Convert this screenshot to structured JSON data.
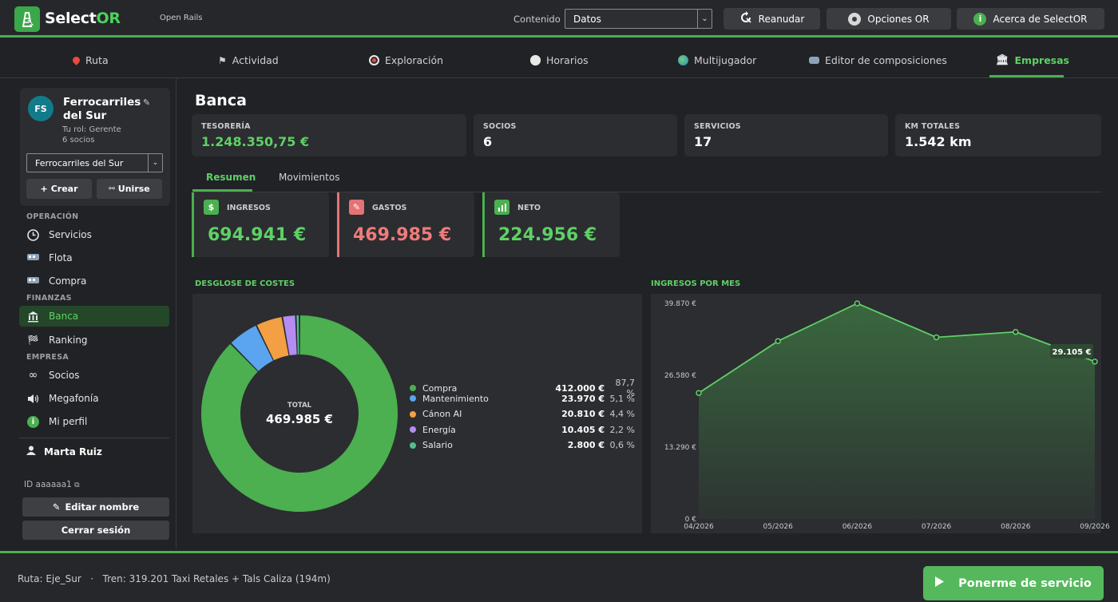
{
  "app": {
    "name_part1": "Select",
    "name_part2": "OR",
    "subtitle": "Open Rails"
  },
  "topbar": {
    "content_label": "Contenido",
    "content_value": "Datos",
    "resume_label": "Reanudar",
    "options_label": "Opciones OR",
    "about_label": "Acerca de SelectOR"
  },
  "nav": {
    "tabs": [
      {
        "label": "Ruta",
        "icon": "pin-icon"
      },
      {
        "label": "Actividad",
        "icon": "flag-icon"
      },
      {
        "label": "Exploración",
        "icon": "compass-icon"
      },
      {
        "label": "Horarios",
        "icon": "clock-icon"
      },
      {
        "label": "Multijugador",
        "icon": "globe-icon"
      },
      {
        "label": "Editor de composiciones",
        "icon": "train-icon"
      },
      {
        "label": "Empresas",
        "icon": "bank-icon"
      }
    ],
    "active": "Empresas"
  },
  "sidebar": {
    "company": {
      "initials": "FS",
      "name": "Ferrocarriles del Sur",
      "role": "Tu rol: Gerente",
      "members": "6 socios",
      "selected": "Ferrocarriles del Sur",
      "create_label": "Crear",
      "join_label": "Unirse"
    },
    "sections": [
      {
        "title": "OPERACIÓN",
        "items": [
          "Servicios",
          "Flota",
          "Compra"
        ]
      },
      {
        "title": "FINANZAS",
        "items": [
          "Banca",
          "Ranking"
        ]
      },
      {
        "title": "EMPRESA",
        "items": [
          "Socios",
          "Megafonía",
          "Mi perfil"
        ]
      }
    ],
    "active_item": "Banca",
    "user": {
      "name": "Marta Ruiz",
      "id": "ID aaaaaa1"
    },
    "edit_name_label": "Editar nombre",
    "logout_label": "Cerrar sesión"
  },
  "main": {
    "title": "Banca",
    "stats": [
      {
        "label": "TESORERÍA",
        "value": "1.248.350,75 €"
      },
      {
        "label": "SOCIOS",
        "value": "6"
      },
      {
        "label": "SERVICIOS",
        "value": "17"
      },
      {
        "label": "KM TOTALES",
        "value": "1.542 km"
      }
    ],
    "tabs": [
      "Resumen",
      "Movimientos"
    ],
    "active_tab": "Resumen",
    "kpis": [
      {
        "label": "INGRESOS",
        "value": "694.941 €",
        "color": "#4caf50"
      },
      {
        "label": "GASTOS",
        "value": "469.985 €",
        "color": "#e57373"
      },
      {
        "label": "NETO",
        "value": "224.956 €",
        "color": "#4caf50"
      }
    ],
    "donut_title": "DESGLOSE DE COSTES",
    "line_title": "INGRESOS POR MES"
  },
  "chart_data": [
    {
      "type": "pie",
      "title": "DESGLOSE DE COSTES",
      "center_label": "TOTAL",
      "center_value": "469.985 €",
      "categories": [
        "Compra",
        "Mantenimiento",
        "Cánon AI",
        "Energía",
        "Salario"
      ],
      "values": [
        412000,
        23970,
        20810,
        10405,
        2800
      ],
      "amount_labels": [
        "412.000 €",
        "23.970 €",
        "20.810 €",
        "10.405 €",
        "2.800 €"
      ],
      "percent_labels": [
        "87,7 %",
        "5,1 %",
        "4,4 %",
        "2,2 %",
        "0,6 %"
      ],
      "colors": [
        "#4caf50",
        "#5ba4f0",
        "#f2a043",
        "#b48cf2",
        "#4fc08d"
      ]
    },
    {
      "type": "area",
      "title": "INGRESOS POR MES",
      "x": [
        "04/2026",
        "05/2026",
        "06/2026",
        "07/2026",
        "08/2026",
        "09/2026"
      ],
      "y": [
        23300,
        32900,
        39870,
        33600,
        34600,
        29105
      ],
      "yticks": [
        0,
        13290,
        26580,
        39870
      ],
      "ytick_labels": [
        "0 €",
        "13.290 €",
        "26.580 €",
        "39.870 €"
      ],
      "ylim": [
        0,
        39870
      ],
      "last_value_label": "29.105 €",
      "color": "#4caf50"
    }
  ],
  "bottom": {
    "route_label": "Ruta: Eje_Sur",
    "separator": "·",
    "train_label": "Tren: 319.201 Taxi Retales + Tals Caliza (194m)",
    "service_button": "Ponerme de servicio"
  }
}
